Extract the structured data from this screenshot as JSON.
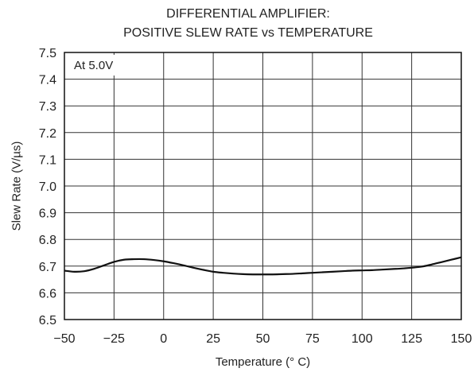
{
  "chart_data": {
    "type": "line",
    "title_lines": [
      "DIFFERENTIAL AMPLIFIER:",
      "POSITIVE SLEW RATE vs TEMPERATURE"
    ],
    "xlabel": "Temperature (° C)",
    "ylabel": "Slew Rate (V/µs)",
    "xlim": [
      -50,
      150
    ],
    "ylim": [
      6.5,
      7.5
    ],
    "xticks": [
      -50,
      -25,
      0,
      25,
      50,
      75,
      100,
      125,
      150
    ],
    "xtick_labels": [
      "−50",
      "−25",
      "0",
      "25",
      "50",
      "75",
      "100",
      "125",
      "150"
    ],
    "yticks": [
      6.5,
      6.6,
      6.7,
      6.8,
      6.9,
      7.0,
      7.1,
      7.2,
      7.3,
      7.4,
      7.5
    ],
    "ytick_labels": [
      "6.5",
      "6.6",
      "6.7",
      "6.8",
      "6.9",
      "7.0",
      "7.1",
      "7.2",
      "7.3",
      "7.4",
      "7.5"
    ],
    "grid": true,
    "annotation": "At 5.0V",
    "series": [
      {
        "x": [
          -50,
          -45,
          -40,
          -35,
          -30,
          -25,
          -20,
          -15,
          -10,
          -5,
          0,
          5,
          10,
          15,
          20,
          25,
          30,
          35,
          40,
          45,
          50,
          55,
          60,
          65,
          70,
          75,
          80,
          85,
          90,
          95,
          100,
          105,
          110,
          115,
          120,
          125,
          130,
          135,
          140,
          145,
          150
        ],
        "y": [
          6.683,
          6.679,
          6.681,
          6.69,
          6.703,
          6.716,
          6.724,
          6.726,
          6.726,
          6.723,
          6.718,
          6.711,
          6.703,
          6.694,
          6.686,
          6.679,
          6.675,
          6.672,
          6.67,
          6.669,
          6.669,
          6.669,
          6.67,
          6.671,
          6.673,
          6.675,
          6.677,
          6.679,
          6.681,
          6.683,
          6.684,
          6.685,
          6.687,
          6.689,
          6.691,
          6.694,
          6.698,
          6.706,
          6.715,
          6.724,
          6.733
        ]
      }
    ]
  }
}
